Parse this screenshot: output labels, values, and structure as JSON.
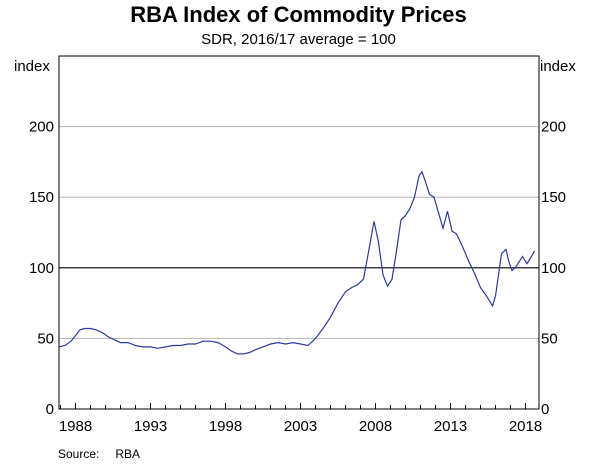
{
  "chart_data": {
    "type": "line",
    "title": "RBA Index of Commodity Prices",
    "subtitle": "SDR, 2016/17 average = 100",
    "ylabel_left": "index",
    "ylabel_right": "index",
    "ylim": [
      0,
      250
    ],
    "yticks": [
      0,
      50,
      100,
      150,
      200
    ],
    "xlim": [
      1986.9,
      2018.9
    ],
    "xticks": [
      1988,
      1993,
      1998,
      2003,
      2008,
      2013,
      2018
    ],
    "reference_line": 100,
    "grid": true,
    "line_color": "#2b3c9c",
    "source_label": "Source:",
    "source_value": "RBA",
    "series": [
      {
        "x": [
          1986.9,
          1987.3,
          1987.7,
          1988.0,
          1988.3,
          1988.6,
          1989.0,
          1989.4,
          1989.8,
          1990.2,
          1990.6,
          1991.0,
          1991.5,
          1992.0,
          1992.5,
          1993.0,
          1993.5,
          1994.0,
          1994.5,
          1995.0,
          1995.5,
          1996.0,
          1996.5,
          1997.0,
          1997.5,
          1998.0,
          1998.4,
          1998.8,
          1999.2,
          1999.6,
          2000.0,
          2000.5,
          2001.0,
          2001.5,
          2002.0,
          2002.5,
          2003.0,
          2003.5,
          2004.0,
          2004.5,
          2005.0,
          2005.5,
          2006.0,
          2006.4,
          2006.8,
          2007.2,
          2007.6,
          2007.9,
          2008.2,
          2008.5,
          2008.8,
          2009.1,
          2009.4,
          2009.7,
          2010.0,
          2010.3,
          2010.6,
          2010.9,
          2011.1,
          2011.3,
          2011.6,
          2011.9,
          2012.2,
          2012.5,
          2012.8,
          2013.1,
          2013.4,
          2013.8,
          2014.2,
          2014.6,
          2015.0,
          2015.4,
          2015.8,
          2016.0,
          2016.2,
          2016.4,
          2016.7,
          2016.9,
          2017.1,
          2017.3,
          2017.5,
          2017.8,
          2018.1,
          2018.4,
          2018.6
        ],
        "values": [
          44,
          45,
          48,
          52,
          56,
          57,
          57,
          56,
          54,
          51,
          49,
          47,
          47,
          45,
          44,
          44,
          43,
          44,
          45,
          45,
          46,
          46,
          48,
          48,
          47,
          44,
          41,
          39,
          39,
          40,
          42,
          44,
          46,
          47,
          46,
          47,
          46,
          45,
          50,
          57,
          65,
          75,
          83,
          86,
          88,
          92,
          115,
          133,
          118,
          95,
          87,
          92,
          112,
          134,
          137,
          142,
          150,
          165,
          168,
          162,
          152,
          150,
          139,
          128,
          140,
          126,
          124,
          115,
          105,
          96,
          86,
          80,
          73,
          80,
          95,
          110,
          113,
          104,
          98,
          100,
          103,
          108,
          103,
          108,
          112
        ]
      }
    ]
  }
}
